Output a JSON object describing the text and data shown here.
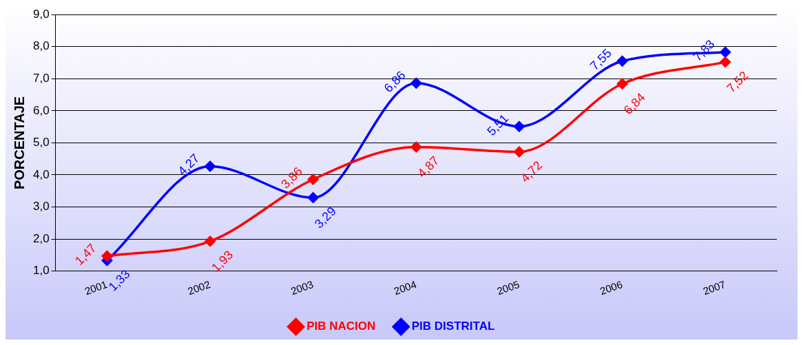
{
  "chart_data": {
    "type": "line",
    "ylabel": "PORCENTAJE",
    "categories": [
      "2001",
      "2002",
      "2003",
      "2004",
      "2005",
      "2006",
      "2007"
    ],
    "series": [
      {
        "name": "PIB NACION",
        "color": "#ff0000",
        "values": [
          1.47,
          1.93,
          3.86,
          4.87,
          4.72,
          6.84,
          7.52
        ],
        "value_labels": [
          "1,47",
          "1,93",
          "3,86",
          "4,87",
          "4,72",
          "6,84",
          "7,52"
        ]
      },
      {
        "name": "PIB DISTRITAL",
        "color": "#0000ff",
        "values": [
          1.33,
          4.27,
          3.29,
          6.86,
          5.51,
          7.55,
          7.83
        ],
        "value_labels": [
          "1,33",
          "4,27",
          "3,29",
          "6,86",
          "5,51",
          "7,55",
          "7,83"
        ]
      }
    ],
    "ylim": [
      1,
      9
    ],
    "yticks": [
      {
        "value": 1,
        "label": "1,0"
      },
      {
        "value": 2,
        "label": "2,0"
      },
      {
        "value": 3,
        "label": "3,0"
      },
      {
        "value": 4,
        "label": "4,0"
      },
      {
        "value": 5,
        "label": "5,0"
      },
      {
        "value": 6,
        "label": "6,0"
      },
      {
        "value": 7,
        "label": "7,0"
      },
      {
        "value": 8,
        "label": "8,0"
      },
      {
        "value": 9,
        "label": "9,0"
      }
    ],
    "grid": "y",
    "legend": "bottom",
    "marker": "diamond",
    "line_style": "solid"
  }
}
